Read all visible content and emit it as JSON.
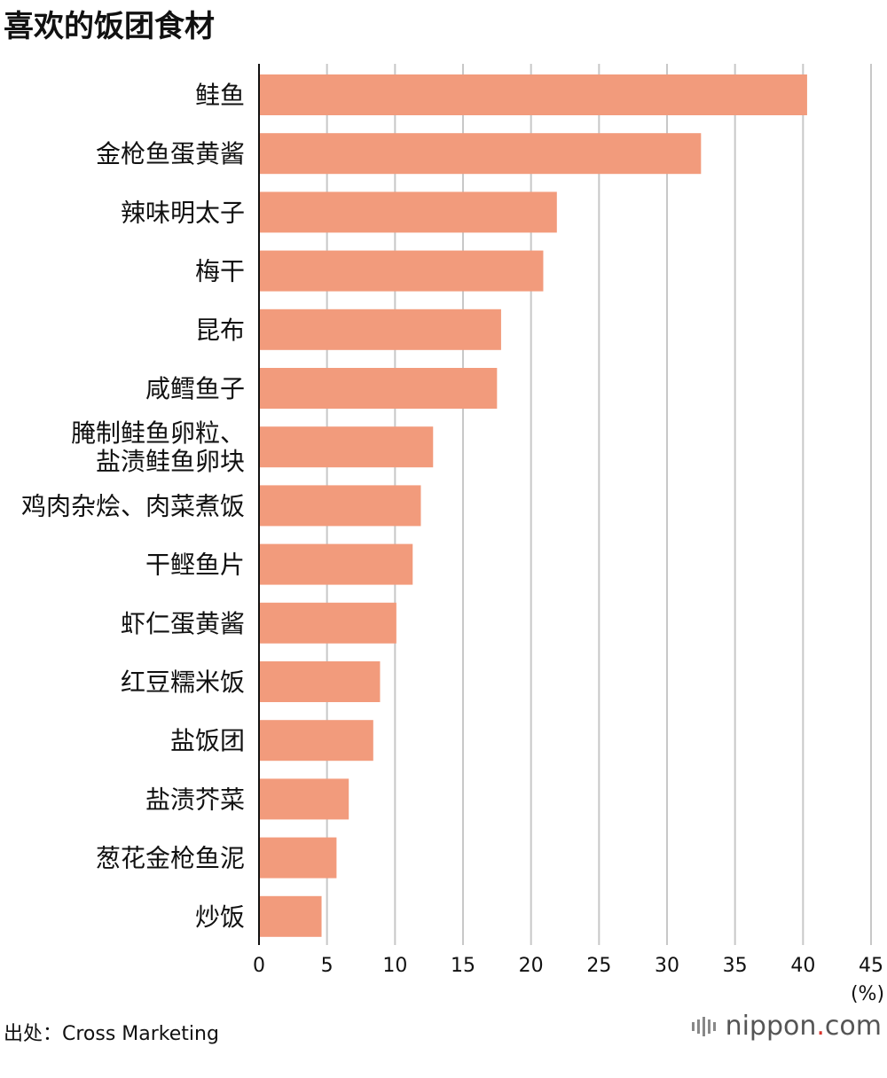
{
  "title": "喜欢的饭团食材",
  "source": "出处：Cross Marketing",
  "brand": {
    "pre": "nippon",
    "dot": ".",
    "post": "com",
    "accent": "#d8342c"
  },
  "colors": {
    "bar": "#f29b7c",
    "grid": "#c8c8c8",
    "axis": "#111111"
  },
  "chart_data": {
    "type": "bar",
    "orientation": "horizontal",
    "title": "喜欢的饭团食材",
    "categories": [
      [
        "鲑鱼"
      ],
      [
        "金枪鱼蛋黄酱"
      ],
      [
        "辣味明太子"
      ],
      [
        "梅干"
      ],
      [
        "昆布"
      ],
      [
        "咸鳕鱼子"
      ],
      [
        "腌制鲑鱼卵粒、",
        "盐渍鲑鱼卵块"
      ],
      [
        "鸡肉杂烩、肉菜煮饭"
      ],
      [
        "干鲣鱼片"
      ],
      [
        "虾仁蛋黄酱"
      ],
      [
        "红豆糯米饭"
      ],
      [
        "盐饭团"
      ],
      [
        "盐渍芥菜"
      ],
      [
        "葱花金枪鱼泥"
      ],
      [
        "炒饭"
      ]
    ],
    "values": [
      40.3,
      32.5,
      21.9,
      20.9,
      17.8,
      17.5,
      12.8,
      11.9,
      11.3,
      10.1,
      8.9,
      8.4,
      6.6,
      5.7,
      4.6
    ],
    "xlim": [
      0,
      45
    ],
    "xticks": [
      0,
      5,
      10,
      15,
      20,
      25,
      30,
      35,
      40,
      45
    ],
    "xunit": "(%)",
    "grid": "vertical"
  }
}
